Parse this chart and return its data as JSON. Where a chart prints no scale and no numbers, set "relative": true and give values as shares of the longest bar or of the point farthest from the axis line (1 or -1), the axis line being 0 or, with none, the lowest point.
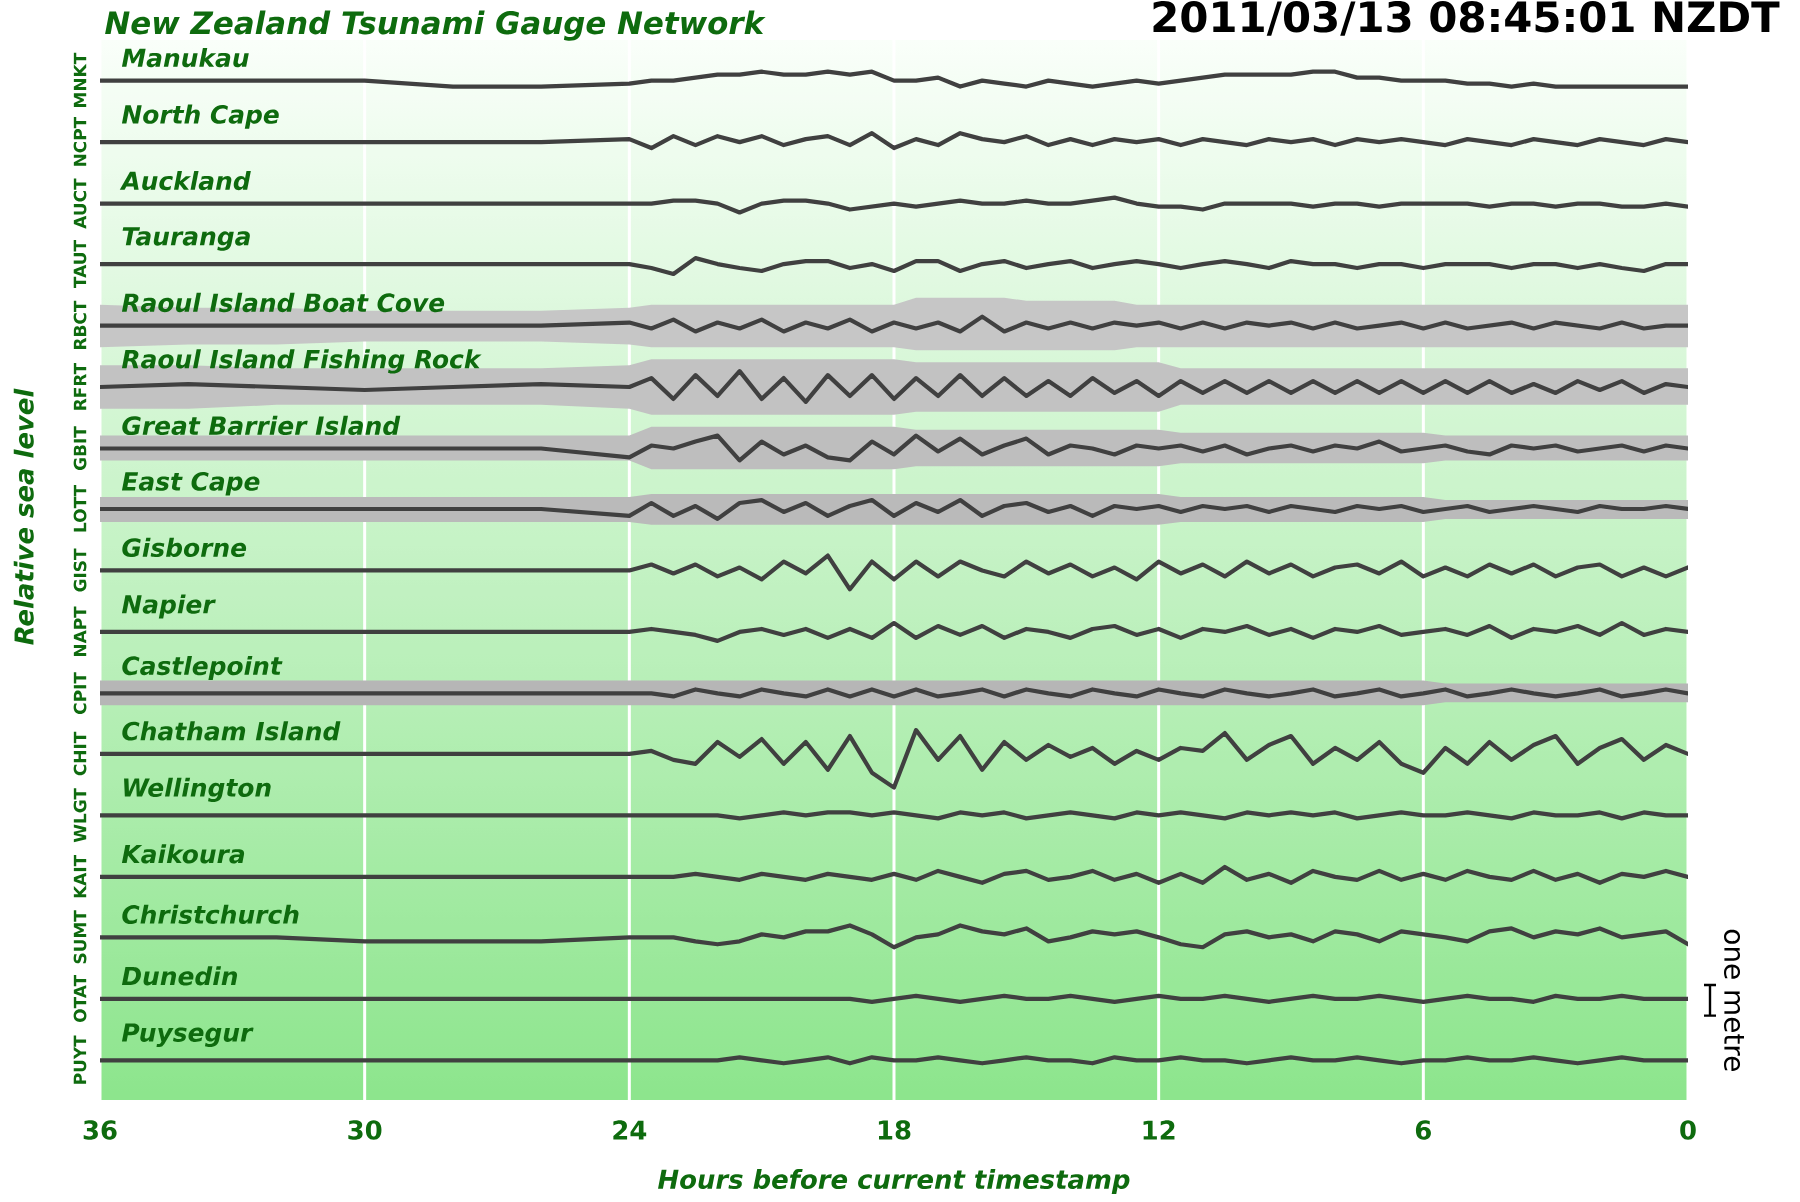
{
  "chart_data": {
    "type": "line",
    "relative": true,
    "title": "New Zealand Tsunami Gauge Network",
    "subtitle": "2011/03/13 08:45:01 NZDT",
    "xlabel": "Hours before current timestamp",
    "ylabel": "Relative sea level",
    "annotations": [
      "one metre",
      "MNKT",
      "NCPT",
      "AUCT",
      "TAUT",
      "RBCT",
      "RFRT",
      "GBIT",
      "LOTT",
      "GIST",
      "NAPT",
      "CPIT",
      "CHIT",
      "WLGT",
      "KAIT",
      "SUMT",
      "OTAT",
      "PUYT"
    ],
    "x": [
      36,
      34,
      32,
      30,
      28,
      26,
      24,
      23.5,
      23,
      22.5,
      22,
      21.5,
      21,
      20.5,
      20,
      19.5,
      19,
      18.5,
      18,
      17.5,
      17,
      16.5,
      16,
      15.5,
      15,
      14.5,
      14,
      13.5,
      13,
      12.5,
      12,
      11.5,
      11,
      10.5,
      10,
      9.5,
      9,
      8.5,
      8,
      7.5,
      7,
      6.5,
      6,
      5.5,
      5,
      4.5,
      4,
      3.5,
      3,
      2.5,
      2,
      1.5,
      1,
      0.5,
      0
    ],
    "xlim": [
      36,
      0
    ],
    "xticks": [
      36,
      30,
      24,
      18,
      12,
      6,
      0
    ],
    "grid": "x",
    "series": [
      {
        "name": "Manukau",
        "color": "#404040",
        "values": [
          0.991,
          0.991,
          0.991,
          0.991,
          0.985,
          0.985,
          0.988,
          0.991,
          0.991,
          0.994,
          0.997,
          0.997,
          1,
          0.997,
          0.997,
          1,
          0.997,
          1,
          0.991,
          0.991,
          0.994,
          0.985,
          0.991,
          0.988,
          0.985,
          0.991,
          0.988,
          0.985,
          0.988,
          0.991,
          0.988,
          0.991,
          0.994,
          0.997,
          0.997,
          0.997,
          0.997,
          1,
          1,
          0.994,
          0.994,
          0.991,
          0.991,
          0.991,
          0.988,
          0.988,
          0.985,
          0.988,
          0.985,
          0.985,
          0.985,
          0.985,
          0.985,
          0.985,
          0.985
        ]
      },
      {
        "name": "North Cape",
        "color": "#404040",
        "values": [
          0.929,
          0.929,
          0.929,
          0.929,
          0.929,
          0.929,
          0.932,
          0.923,
          0.935,
          0.926,
          0.935,
          0.929,
          0.935,
          0.926,
          0.932,
          0.935,
          0.926,
          0.938,
          0.923,
          0.932,
          0.926,
          0.938,
          0.932,
          0.929,
          0.935,
          0.926,
          0.932,
          0.926,
          0.932,
          0.929,
          0.932,
          0.926,
          0.932,
          0.929,
          0.926,
          0.932,
          0.929,
          0.932,
          0.926,
          0.932,
          0.929,
          0.932,
          0.929,
          0.926,
          0.932,
          0.929,
          0.926,
          0.932,
          0.929,
          0.926,
          0.932,
          0.929,
          0.926,
          0.932,
          0.929
        ]
      },
      {
        "name": "Auckland",
        "color": "#404040",
        "values": [
          0.867,
          0.867,
          0.867,
          0.867,
          0.867,
          0.867,
          0.867,
          0.867,
          0.87,
          0.87,
          0.867,
          0.858,
          0.867,
          0.87,
          0.87,
          0.867,
          0.861,
          0.864,
          0.867,
          0.864,
          0.867,
          0.87,
          0.867,
          0.867,
          0.87,
          0.867,
          0.867,
          0.87,
          0.873,
          0.867,
          0.864,
          0.864,
          0.861,
          0.867,
          0.867,
          0.867,
          0.867,
          0.864,
          0.867,
          0.867,
          0.864,
          0.867,
          0.867,
          0.867,
          0.867,
          0.864,
          0.867,
          0.867,
          0.864,
          0.867,
          0.867,
          0.864,
          0.864,
          0.867,
          0.864
        ]
      },
      {
        "name": "Tauranga",
        "color": "#404040",
        "values": [
          0.806,
          0.806,
          0.806,
          0.806,
          0.806,
          0.806,
          0.806,
          0.802,
          0.796,
          0.812,
          0.806,
          0.802,
          0.799,
          0.806,
          0.809,
          0.809,
          0.802,
          0.806,
          0.799,
          0.809,
          0.809,
          0.799,
          0.806,
          0.809,
          0.802,
          0.806,
          0.809,
          0.802,
          0.806,
          0.809,
          0.806,
          0.802,
          0.806,
          0.809,
          0.806,
          0.802,
          0.809,
          0.806,
          0.806,
          0.802,
          0.806,
          0.806,
          0.802,
          0.806,
          0.806,
          0.806,
          0.802,
          0.806,
          0.806,
          0.802,
          0.806,
          0.802,
          0.799,
          0.806,
          0.806
        ]
      },
      {
        "name": "Raoul Island Boat Cove",
        "color": "#404040",
        "values": [
          0.744,
          0.744,
          0.744,
          0.744,
          0.744,
          0.744,
          0.747,
          0.741,
          0.75,
          0.738,
          0.747,
          0.741,
          0.75,
          0.738,
          0.747,
          0.741,
          0.75,
          0.738,
          0.747,
          0.741,
          0.747,
          0.738,
          0.753,
          0.738,
          0.747,
          0.741,
          0.747,
          0.741,
          0.747,
          0.744,
          0.747,
          0.741,
          0.747,
          0.741,
          0.747,
          0.744,
          0.747,
          0.741,
          0.747,
          0.741,
          0.744,
          0.747,
          0.741,
          0.747,
          0.741,
          0.744,
          0.747,
          0.741,
          0.747,
          0.744,
          0.741,
          0.747,
          0.741,
          0.744,
          0.744
        ],
        "upper": [
          0.765,
          0.762,
          0.762,
          0.759,
          0.759,
          0.759,
          0.762,
          0.765,
          0.765,
          0.765,
          0.765,
          0.765,
          0.765,
          0.765,
          0.765,
          0.765,
          0.765,
          0.765,
          0.765,
          0.772,
          0.772,
          0.772,
          0.772,
          0.772,
          0.769,
          0.769,
          0.769,
          0.769,
          0.769,
          0.765,
          0.765,
          0.765,
          0.765,
          0.765,
          0.765,
          0.765,
          0.765,
          0.765,
          0.765,
          0.765,
          0.765,
          0.765,
          0.765,
          0.765,
          0.765,
          0.765,
          0.765,
          0.765,
          0.765,
          0.765,
          0.765,
          0.765,
          0.765,
          0.765,
          0.765
        ],
        "lower": [
          0.722,
          0.725,
          0.725,
          0.728,
          0.728,
          0.728,
          0.725,
          0.722,
          0.722,
          0.722,
          0.722,
          0.722,
          0.722,
          0.722,
          0.722,
          0.722,
          0.722,
          0.722,
          0.722,
          0.719,
          0.719,
          0.719,
          0.719,
          0.719,
          0.719,
          0.719,
          0.719,
          0.719,
          0.719,
          0.722,
          0.722,
          0.722,
          0.722,
          0.722,
          0.722,
          0.722,
          0.722,
          0.722,
          0.722,
          0.722,
          0.722,
          0.722,
          0.722,
          0.722,
          0.722,
          0.722,
          0.722,
          0.722,
          0.722,
          0.722,
          0.722,
          0.722,
          0.722,
          0.722,
          0.722
        ]
      },
      {
        "name": "Raoul Island Fishing Rock",
        "color": "#404040",
        "values": [
          0.682,
          0.685,
          0.682,
          0.679,
          0.682,
          0.685,
          0.682,
          0.691,
          0.67,
          0.694,
          0.673,
          0.698,
          0.67,
          0.691,
          0.667,
          0.694,
          0.673,
          0.694,
          0.67,
          0.691,
          0.673,
          0.694,
          0.673,
          0.691,
          0.673,
          0.688,
          0.673,
          0.691,
          0.676,
          0.688,
          0.673,
          0.688,
          0.676,
          0.688,
          0.676,
          0.688,
          0.676,
          0.688,
          0.676,
          0.688,
          0.676,
          0.688,
          0.676,
          0.688,
          0.676,
          0.688,
          0.676,
          0.685,
          0.676,
          0.688,
          0.679,
          0.688,
          0.676,
          0.685,
          0.682
        ],
        "upper": [
          0.704,
          0.704,
          0.701,
          0.701,
          0.701,
          0.701,
          0.704,
          0.71,
          0.71,
          0.71,
          0.71,
          0.71,
          0.71,
          0.71,
          0.71,
          0.71,
          0.71,
          0.71,
          0.71,
          0.707,
          0.707,
          0.707,
          0.707,
          0.707,
          0.707,
          0.707,
          0.707,
          0.707,
          0.707,
          0.707,
          0.707,
          0.701,
          0.701,
          0.701,
          0.701,
          0.701,
          0.701,
          0.701,
          0.701,
          0.701,
          0.701,
          0.701,
          0.701,
          0.701,
          0.701,
          0.701,
          0.701,
          0.701,
          0.701,
          0.701,
          0.701,
          0.701,
          0.701,
          0.701,
          0.701
        ],
        "lower": [
          0.66,
          0.66,
          0.664,
          0.664,
          0.664,
          0.664,
          0.66,
          0.654,
          0.654,
          0.654,
          0.654,
          0.654,
          0.654,
          0.654,
          0.654,
          0.654,
          0.654,
          0.654,
          0.654,
          0.657,
          0.657,
          0.657,
          0.657,
          0.657,
          0.657,
          0.657,
          0.657,
          0.657,
          0.657,
          0.657,
          0.657,
          0.664,
          0.664,
          0.664,
          0.664,
          0.664,
          0.664,
          0.664,
          0.664,
          0.664,
          0.664,
          0.664,
          0.664,
          0.664,
          0.664,
          0.664,
          0.664,
          0.664,
          0.664,
          0.664,
          0.664,
          0.664,
          0.664,
          0.664,
          0.664
        ]
      },
      {
        "name": "Great Barrier Island",
        "color": "#404040",
        "values": [
          0.62,
          0.62,
          0.62,
          0.62,
          0.62,
          0.62,
          0.611,
          0.623,
          0.62,
          0.627,
          0.633,
          0.608,
          0.627,
          0.614,
          0.623,
          0.611,
          0.608,
          0.627,
          0.614,
          0.633,
          0.617,
          0.63,
          0.614,
          0.623,
          0.63,
          0.614,
          0.623,
          0.62,
          0.614,
          0.623,
          0.62,
          0.623,
          0.617,
          0.623,
          0.614,
          0.62,
          0.623,
          0.617,
          0.623,
          0.62,
          0.627,
          0.617,
          0.62,
          0.623,
          0.617,
          0.614,
          0.623,
          0.62,
          0.623,
          0.617,
          0.62,
          0.623,
          0.617,
          0.623,
          0.62
        ],
        "upper": [
          0.633,
          0.633,
          0.633,
          0.633,
          0.633,
          0.633,
          0.633,
          0.642,
          0.642,
          0.642,
          0.642,
          0.642,
          0.642,
          0.642,
          0.642,
          0.642,
          0.642,
          0.642,
          0.642,
          0.639,
          0.639,
          0.639,
          0.639,
          0.639,
          0.639,
          0.639,
          0.639,
          0.639,
          0.639,
          0.639,
          0.639,
          0.636,
          0.636,
          0.636,
          0.636,
          0.636,
          0.636,
          0.636,
          0.636,
          0.636,
          0.636,
          0.636,
          0.636,
          0.633,
          0.633,
          0.633,
          0.633,
          0.633,
          0.633,
          0.633,
          0.633,
          0.633,
          0.633,
          0.633,
          0.633
        ],
        "lower": [
          0.608,
          0.608,
          0.608,
          0.608,
          0.608,
          0.608,
          0.608,
          0.599,
          0.599,
          0.599,
          0.599,
          0.599,
          0.599,
          0.599,
          0.599,
          0.599,
          0.599,
          0.599,
          0.599,
          0.602,
          0.602,
          0.602,
          0.602,
          0.602,
          0.602,
          0.602,
          0.602,
          0.602,
          0.602,
          0.602,
          0.602,
          0.605,
          0.605,
          0.605,
          0.605,
          0.605,
          0.605,
          0.605,
          0.605,
          0.605,
          0.605,
          0.605,
          0.605,
          0.608,
          0.608,
          0.608,
          0.608,
          0.608,
          0.608,
          0.608,
          0.608,
          0.608,
          0.608,
          0.608,
          0.608
        ]
      },
      {
        "name": "East Cape",
        "color": "#404040",
        "values": [
          0.559,
          0.559,
          0.559,
          0.559,
          0.559,
          0.559,
          0.552,
          0.565,
          0.552,
          0.562,
          0.549,
          0.565,
          0.568,
          0.556,
          0.565,
          0.552,
          0.562,
          0.568,
          0.552,
          0.565,
          0.556,
          0.568,
          0.552,
          0.562,
          0.565,
          0.556,
          0.562,
          0.552,
          0.562,
          0.559,
          0.562,
          0.556,
          0.562,
          0.559,
          0.562,
          0.556,
          0.562,
          0.559,
          0.556,
          0.562,
          0.559,
          0.562,
          0.556,
          0.559,
          0.562,
          0.556,
          0.559,
          0.562,
          0.559,
          0.556,
          0.562,
          0.559,
          0.559,
          0.562,
          0.559
        ],
        "upper": [
          0.571,
          0.571,
          0.571,
          0.571,
          0.571,
          0.571,
          0.571,
          0.574,
          0.574,
          0.574,
          0.574,
          0.574,
          0.574,
          0.574,
          0.574,
          0.574,
          0.574,
          0.574,
          0.574,
          0.574,
          0.574,
          0.574,
          0.574,
          0.574,
          0.574,
          0.574,
          0.574,
          0.574,
          0.574,
          0.574,
          0.574,
          0.571,
          0.571,
          0.571,
          0.571,
          0.571,
          0.571,
          0.571,
          0.571,
          0.571,
          0.571,
          0.571,
          0.571,
          0.568,
          0.568,
          0.568,
          0.568,
          0.568,
          0.568,
          0.568,
          0.568,
          0.568,
          0.568,
          0.568,
          0.568
        ],
        "lower": [
          0.546,
          0.546,
          0.546,
          0.546,
          0.546,
          0.546,
          0.546,
          0.543,
          0.543,
          0.543,
          0.543,
          0.543,
          0.543,
          0.543,
          0.543,
          0.543,
          0.543,
          0.543,
          0.543,
          0.543,
          0.543,
          0.543,
          0.543,
          0.543,
          0.543,
          0.543,
          0.543,
          0.543,
          0.543,
          0.543,
          0.543,
          0.546,
          0.546,
          0.546,
          0.546,
          0.546,
          0.546,
          0.546,
          0.546,
          0.546,
          0.546,
          0.546,
          0.546,
          0.549,
          0.549,
          0.549,
          0.549,
          0.549,
          0.549,
          0.549,
          0.549,
          0.549,
          0.549,
          0.549,
          0.549
        ]
      },
      {
        "name": "Gisborne",
        "color": "#404040",
        "values": [
          0.497,
          0.497,
          0.497,
          0.497,
          0.497,
          0.497,
          0.497,
          0.503,
          0.494,
          0.503,
          0.491,
          0.5,
          0.488,
          0.506,
          0.494,
          0.512,
          0.478,
          0.506,
          0.488,
          0.506,
          0.491,
          0.506,
          0.497,
          0.491,
          0.506,
          0.494,
          0.503,
          0.491,
          0.5,
          0.488,
          0.506,
          0.494,
          0.503,
          0.491,
          0.506,
          0.494,
          0.503,
          0.491,
          0.5,
          0.503,
          0.494,
          0.506,
          0.491,
          0.5,
          0.491,
          0.503,
          0.494,
          0.503,
          0.491,
          0.5,
          0.503,
          0.491,
          0.5,
          0.491,
          0.5
        ]
      },
      {
        "name": "Napier",
        "color": "#404040",
        "values": [
          0.435,
          0.435,
          0.435,
          0.435,
          0.435,
          0.435,
          0.435,
          0.438,
          0.435,
          0.432,
          0.426,
          0.435,
          0.438,
          0.432,
          0.438,
          0.429,
          0.438,
          0.429,
          0.444,
          0.429,
          0.441,
          0.432,
          0.441,
          0.429,
          0.438,
          0.435,
          0.429,
          0.438,
          0.441,
          0.432,
          0.438,
          0.429,
          0.438,
          0.435,
          0.441,
          0.432,
          0.438,
          0.429,
          0.438,
          0.435,
          0.441,
          0.432,
          0.435,
          0.438,
          0.432,
          0.441,
          0.429,
          0.438,
          0.435,
          0.441,
          0.432,
          0.444,
          0.432,
          0.438,
          0.435
        ]
      },
      {
        "name": "Castlepoint",
        "color": "#404040",
        "values": [
          0.373,
          0.373,
          0.373,
          0.373,
          0.373,
          0.373,
          0.373,
          0.373,
          0.37,
          0.377,
          0.373,
          0.37,
          0.377,
          0.373,
          0.37,
          0.377,
          0.37,
          0.377,
          0.37,
          0.377,
          0.37,
          0.373,
          0.377,
          0.37,
          0.377,
          0.373,
          0.37,
          0.377,
          0.373,
          0.37,
          0.377,
          0.373,
          0.37,
          0.377,
          0.373,
          0.37,
          0.373,
          0.377,
          0.37,
          0.373,
          0.377,
          0.37,
          0.373,
          0.377,
          0.37,
          0.373,
          0.377,
          0.373,
          0.37,
          0.373,
          0.377,
          0.37,
          0.373,
          0.377,
          0.373
        ],
        "upper": [
          0.386,
          0.386,
          0.386,
          0.386,
          0.386,
          0.386,
          0.386,
          0.386,
          0.386,
          0.386,
          0.386,
          0.386,
          0.386,
          0.386,
          0.386,
          0.386,
          0.386,
          0.386,
          0.386,
          0.386,
          0.386,
          0.386,
          0.386,
          0.386,
          0.386,
          0.386,
          0.386,
          0.386,
          0.386,
          0.386,
          0.386,
          0.386,
          0.386,
          0.386,
          0.386,
          0.386,
          0.386,
          0.386,
          0.386,
          0.386,
          0.386,
          0.386,
          0.386,
          0.383,
          0.383,
          0.383,
          0.383,
          0.383,
          0.383,
          0.383,
          0.383,
          0.383,
          0.383,
          0.383,
          0.383
        ],
        "lower": [
          0.361,
          0.361,
          0.361,
          0.361,
          0.361,
          0.361,
          0.361,
          0.361,
          0.361,
          0.361,
          0.361,
          0.361,
          0.361,
          0.361,
          0.361,
          0.361,
          0.361,
          0.361,
          0.361,
          0.361,
          0.361,
          0.361,
          0.361,
          0.361,
          0.361,
          0.361,
          0.361,
          0.361,
          0.361,
          0.361,
          0.361,
          0.361,
          0.361,
          0.361,
          0.361,
          0.361,
          0.361,
          0.361,
          0.361,
          0.361,
          0.361,
          0.361,
          0.361,
          0.364,
          0.364,
          0.364,
          0.364,
          0.364,
          0.364,
          0.364,
          0.364,
          0.364,
          0.364,
          0.364,
          0.364
        ]
      },
      {
        "name": "Chatham Island",
        "color": "#404040",
        "values": [
          0.312,
          0.312,
          0.312,
          0.312,
          0.312,
          0.312,
          0.312,
          0.315,
          0.306,
          0.302,
          0.324,
          0.309,
          0.327,
          0.302,
          0.324,
          0.296,
          0.33,
          0.293,
          0.278,
          0.336,
          0.306,
          0.33,
          0.296,
          0.324,
          0.306,
          0.321,
          0.309,
          0.318,
          0.302,
          0.315,
          0.306,
          0.318,
          0.315,
          0.333,
          0.306,
          0.321,
          0.33,
          0.302,
          0.318,
          0.306,
          0.324,
          0.302,
          0.293,
          0.318,
          0.302,
          0.324,
          0.306,
          0.321,
          0.33,
          0.302,
          0.318,
          0.327,
          0.306,
          0.321,
          0.312
        ]
      },
      {
        "name": "Wellington",
        "color": "#404040",
        "values": [
          0.25,
          0.25,
          0.25,
          0.25,
          0.25,
          0.25,
          0.25,
          0.25,
          0.25,
          0.25,
          0.25,
          0.247,
          0.25,
          0.253,
          0.25,
          0.253,
          0.253,
          0.25,
          0.253,
          0.25,
          0.247,
          0.253,
          0.25,
          0.253,
          0.247,
          0.25,
          0.253,
          0.25,
          0.247,
          0.253,
          0.25,
          0.253,
          0.25,
          0.247,
          0.253,
          0.25,
          0.253,
          0.25,
          0.253,
          0.247,
          0.25,
          0.253,
          0.25,
          0.25,
          0.253,
          0.25,
          0.247,
          0.253,
          0.25,
          0.25,
          0.253,
          0.247,
          0.253,
          0.25,
          0.25
        ]
      },
      {
        "name": "Kaikoura",
        "color": "#404040",
        "values": [
          0.188,
          0.188,
          0.188,
          0.188,
          0.188,
          0.188,
          0.188,
          0.188,
          0.188,
          0.191,
          0.188,
          0.185,
          0.191,
          0.188,
          0.185,
          0.191,
          0.188,
          0.185,
          0.191,
          0.185,
          0.194,
          0.188,
          0.182,
          0.191,
          0.194,
          0.185,
          0.188,
          0.194,
          0.185,
          0.191,
          0.182,
          0.191,
          0.182,
          0.198,
          0.185,
          0.191,
          0.182,
          0.194,
          0.188,
          0.185,
          0.194,
          0.185,
          0.191,
          0.185,
          0.194,
          0.188,
          0.185,
          0.194,
          0.185,
          0.191,
          0.182,
          0.191,
          0.188,
          0.194,
          0.188
        ]
      },
      {
        "name": "Christchurch",
        "color": "#404040",
        "values": [
          0.127,
          0.127,
          0.127,
          0.123,
          0.123,
          0.123,
          0.127,
          0.127,
          0.127,
          0.123,
          0.12,
          0.123,
          0.13,
          0.127,
          0.133,
          0.133,
          0.139,
          0.13,
          0.117,
          0.127,
          0.13,
          0.139,
          0.133,
          0.13,
          0.136,
          0.123,
          0.127,
          0.133,
          0.13,
          0.133,
          0.127,
          0.12,
          0.117,
          0.13,
          0.133,
          0.127,
          0.13,
          0.123,
          0.133,
          0.13,
          0.123,
          0.133,
          0.13,
          0.127,
          0.123,
          0.133,
          0.136,
          0.127,
          0.133,
          0.13,
          0.136,
          0.127,
          0.13,
          0.133,
          0.12
        ]
      },
      {
        "name": "Dunedin",
        "color": "#404040",
        "values": [
          0.065,
          0.065,
          0.065,
          0.065,
          0.065,
          0.065,
          0.065,
          0.065,
          0.065,
          0.065,
          0.065,
          0.065,
          0.065,
          0.065,
          0.065,
          0.065,
          0.065,
          0.062,
          0.065,
          0.068,
          0.065,
          0.062,
          0.065,
          0.068,
          0.065,
          0.065,
          0.068,
          0.065,
          0.062,
          0.065,
          0.068,
          0.065,
          0.065,
          0.068,
          0.065,
          0.062,
          0.065,
          0.068,
          0.065,
          0.065,
          0.068,
          0.065,
          0.062,
          0.065,
          0.068,
          0.065,
          0.065,
          0.062,
          0.068,
          0.065,
          0.065,
          0.068,
          0.065,
          0.065,
          0.065
        ]
      },
      {
        "name": "Puysegur",
        "color": "#404040",
        "values": [
          0.003,
          0.003,
          0.003,
          0.003,
          0.003,
          0.003,
          0.003,
          0.003,
          0.003,
          0.003,
          0.003,
          0.006,
          0.003,
          0,
          0.003,
          0.006,
          0,
          0.006,
          0.003,
          0.003,
          0.006,
          0.003,
          0,
          0.003,
          0.006,
          0.003,
          0.003,
          0,
          0.006,
          0.003,
          0.003,
          0.006,
          0.003,
          0.003,
          0,
          0.003,
          0.006,
          0.003,
          0.003,
          0.006,
          0.003,
          0,
          0.003,
          0.003,
          0.006,
          0.003,
          0.003,
          0.006,
          0.003,
          0,
          0.003,
          0.006,
          0.003,
          0.003,
          0.003
        ]
      }
    ]
  }
}
